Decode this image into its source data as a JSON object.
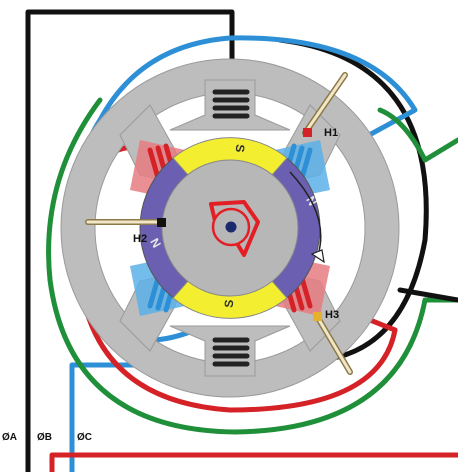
{
  "hall_sensors": [
    {
      "label": "H1"
    },
    {
      "label": "H2"
    },
    {
      "label": "H3"
    }
  ],
  "rotor_poles": [
    {
      "label": "S",
      "color": "#f3ee2f"
    },
    {
      "label": "N",
      "color": "#6a5fb0"
    },
    {
      "label": "S",
      "color": "#f3ee2f"
    },
    {
      "label": "N",
      "color": "#6a5fb0"
    }
  ],
  "phases": [
    {
      "label": "ØA",
      "color": "#111111"
    },
    {
      "label": "ØB",
      "color": "#2d8fd6"
    },
    {
      "label": "ØC",
      "color": "#d42227"
    }
  ],
  "extra_wire_color": "#1f8f3a",
  "stator_color": "#bdbdbd",
  "rotor_color": "#b7b7b7",
  "rotation_mark_color": "#e31e24"
}
